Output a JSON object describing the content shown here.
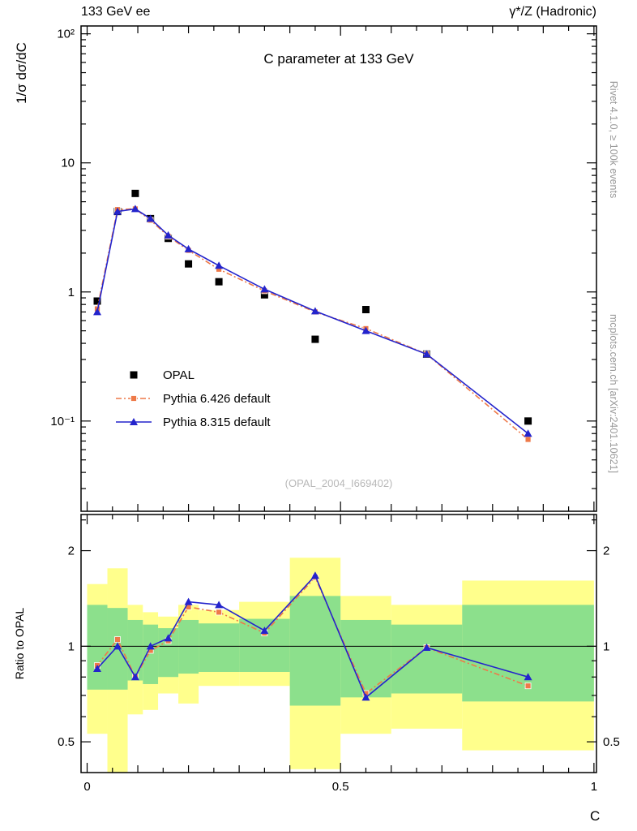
{
  "header": {
    "left": "133 GeV ee",
    "right": "γ*/Z (Hadronic)"
  },
  "side_texts": {
    "top": "Rivet 4.1.0, ≥ 100k events",
    "bottom": "mcplots.cern.ch [arXiv:2401.10621]"
  },
  "xlabel": "C",
  "legend": [
    "OPAL",
    "Pythia 6.426 default",
    "Pythia 8.315 default"
  ],
  "chart_data": [
    {
      "type": "line",
      "panel": "main",
      "title": "C parameter at 133 GeV",
      "ylabel": "1/σ  dσ/dC",
      "watermark": "(OPAL_2004_I669402)",
      "xlim": [
        -0.012,
        1.005
      ],
      "ylim": [
        0.02,
        115
      ],
      "yscale": "log",
      "yticks": [
        {
          "value": 100,
          "label": "10²"
        },
        {
          "value": 10,
          "label": "10"
        },
        {
          "value": 1,
          "label": "1"
        },
        {
          "value": 0.1,
          "label": "10⁻¹"
        }
      ],
      "xticks": [
        {
          "value": 0,
          "label": "0"
        },
        {
          "value": 0.5,
          "label": "0.5"
        },
        {
          "value": 1,
          "label": "1"
        }
      ],
      "x": [
        0.02,
        0.06,
        0.095,
        0.125,
        0.16,
        0.2,
        0.26,
        0.35,
        0.45,
        0.55,
        0.67,
        0.87
      ],
      "series": [
        {
          "name": "OPAL",
          "color": "#000000",
          "marker": "square",
          "line": "none",
          "values": [
            0.85,
            4.2,
            5.8,
            3.7,
            2.6,
            1.65,
            1.2,
            0.95,
            0.43,
            0.73,
            0.33,
            0.1
          ]
        },
        {
          "name": "Pythia 6.426 default",
          "color": "#ee7948",
          "marker": "square-small",
          "line": "dashdot",
          "values": [
            0.74,
            4.35,
            4.4,
            3.6,
            2.7,
            2.1,
            1.5,
            1.02,
            0.7,
            0.52,
            0.33,
            0.072
          ]
        },
        {
          "name": "Pythia 8.315 default",
          "color": "#2424cc",
          "marker": "triangle",
          "line": "solid",
          "values": [
            0.7,
            4.2,
            4.4,
            3.7,
            2.75,
            2.15,
            1.6,
            1.05,
            0.71,
            0.5,
            0.33,
            0.08
          ]
        }
      ]
    },
    {
      "type": "line",
      "panel": "ratio",
      "ylabel": "Ratio to OPAL",
      "xlim": [
        -0.012,
        1.005
      ],
      "ylim": [
        0.4,
        2.6
      ],
      "yscale": "log",
      "reference_line": 1,
      "yticks": [
        {
          "value": 0.5,
          "label": "0.5"
        },
        {
          "value": 1,
          "label": "1"
        },
        {
          "value": 2,
          "label": "2"
        }
      ],
      "colors": {
        "band_outer": "#ffff8c",
        "band_inner": "#8ce08c"
      },
      "band_edges": [
        0,
        0.04,
        0.08,
        0.11,
        0.14,
        0.18,
        0.22,
        0.3,
        0.4,
        0.5,
        0.6,
        0.74,
        1.0
      ],
      "bands_yellow": [
        [
          0.53,
          1.57
        ],
        [
          0.4,
          1.76
        ],
        [
          0.61,
          1.35
        ],
        [
          0.63,
          1.28
        ],
        [
          0.71,
          1.24
        ],
        [
          0.66,
          1.35
        ],
        [
          0.75,
          1.3
        ],
        [
          0.75,
          1.38
        ],
        [
          0.41,
          1.9
        ],
        [
          0.53,
          1.44
        ],
        [
          0.55,
          1.35
        ],
        [
          0.47,
          1.61
        ]
      ],
      "bands_green": [
        [
          0.73,
          1.35
        ],
        [
          0.73,
          1.32
        ],
        [
          0.78,
          1.21
        ],
        [
          0.76,
          1.17
        ],
        [
          0.8,
          1.14
        ],
        [
          0.82,
          1.21
        ],
        [
          0.83,
          1.18
        ],
        [
          0.83,
          1.22
        ],
        [
          0.65,
          1.44
        ],
        [
          0.69,
          1.21
        ],
        [
          0.71,
          1.17
        ],
        [
          0.67,
          1.35
        ]
      ],
      "x": [
        0.02,
        0.06,
        0.095,
        0.125,
        0.16,
        0.2,
        0.26,
        0.35,
        0.45,
        0.55,
        0.67,
        0.87
      ],
      "series": [
        {
          "name": "Pythia 6.426 default",
          "color": "#ee7948",
          "marker": "square-small",
          "line": "dashdot",
          "values": [
            0.87,
            1.05,
            0.8,
            0.97,
            1.04,
            1.33,
            1.28,
            1.1,
            1.65,
            0.71,
            0.99,
            0.75
          ]
        },
        {
          "name": "Pythia 8.315 default",
          "color": "#2424cc",
          "marker": "triangle",
          "line": "solid",
          "values": [
            0.85,
            1.0,
            0.8,
            1.0,
            1.06,
            1.38,
            1.35,
            1.12,
            1.67,
            0.69,
            0.99,
            0.8
          ]
        }
      ]
    }
  ]
}
